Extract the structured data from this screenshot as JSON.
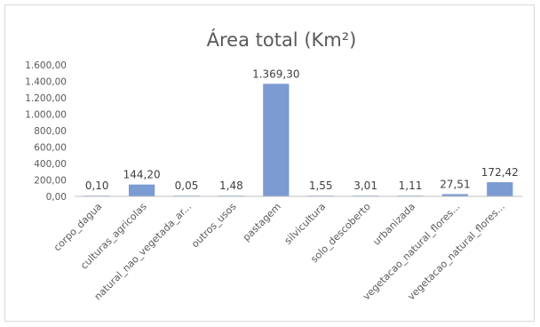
{
  "chart_data": {
    "type": "bar",
    "title": "Área total (Km²)",
    "categories": [
      "corpo_dagua",
      "culturas_agricolas",
      "natural_nao_vegetada_ar...",
      "outros_usos",
      "pastagem",
      "silvicultura",
      "solo_descoberto",
      "urbanizada",
      "vegetacao_natural_flores...",
      "vegetacao_natural_flores..."
    ],
    "values": [
      0.1,
      144.2,
      0.05,
      1.48,
      1369.3,
      1.55,
      3.01,
      1.11,
      27.51,
      172.42
    ],
    "value_labels": [
      "0,10",
      "144,20",
      "0,05",
      "1,48",
      "1.369,30",
      "1,55",
      "3,01",
      "1,11",
      "27,51",
      "172,42"
    ],
    "ylim": [
      0,
      1600
    ],
    "yticks": [
      0,
      200,
      400,
      600,
      800,
      1000,
      1200,
      1400,
      1600
    ],
    "ytick_labels": [
      "0,00",
      "200,00",
      "400,00",
      "600,00",
      "800,00",
      "1.000,00",
      "1.200,00",
      "1.400,00",
      "1.600,00"
    ],
    "xlabel": "",
    "ylabel": "",
    "grid": false,
    "bar_color": "#7b9bd2",
    "legend": "none"
  }
}
